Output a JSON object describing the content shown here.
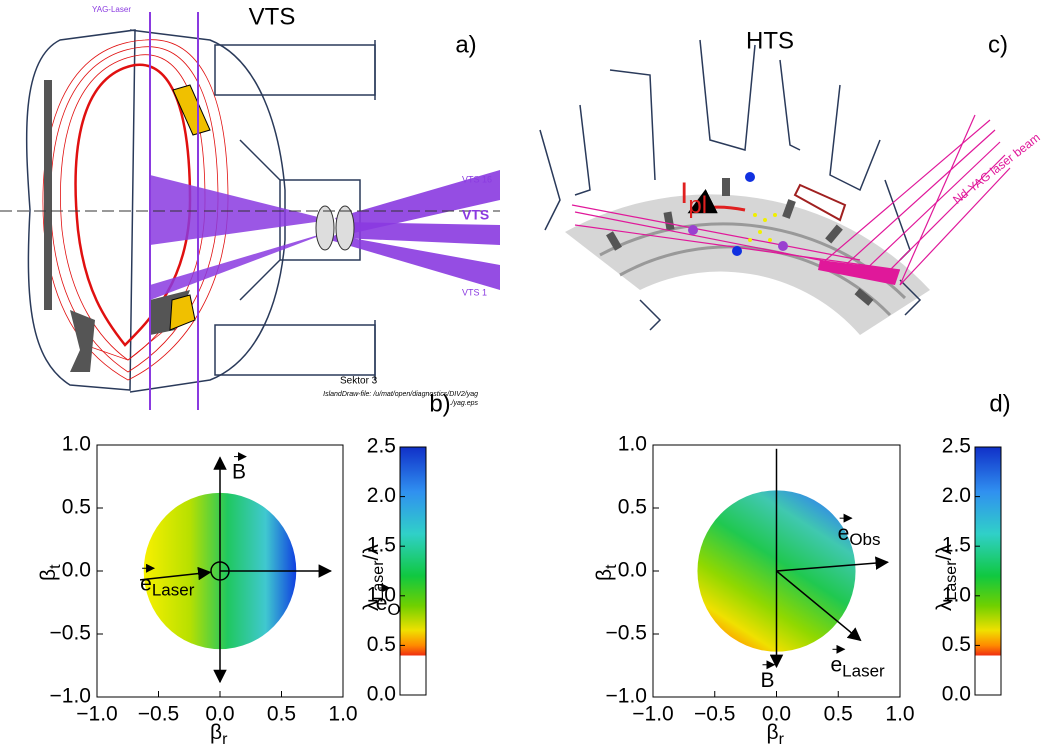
{
  "panels": {
    "a": {
      "title": "VTS",
      "label": "a)",
      "texts": {
        "yag": "YAG-Laser",
        "vts16": "VTS 16",
        "vts": "VTS",
        "vts1": "VTS 1",
        "sektor": "Sektor  3",
        "file1": "IslandDraw-file: /u/mat/open/diagnostics/DIV2/yag",
        "file2": "../yag.eps"
      }
    },
    "c": {
      "title": "HTS",
      "label": "c)",
      "current": {
        "symbol": "I",
        "sub": "pl"
      },
      "beam": "Nd-YAG laser beam"
    }
  },
  "chart_data": [
    {
      "type": "vector",
      "panel_label": "b)",
      "xlabel": {
        "symbol": "β",
        "sub": "r"
      },
      "ylabel": {
        "symbol": "β",
        "sub": "t"
      },
      "xlim": [
        -1,
        1
      ],
      "ylim": [
        -1,
        1
      ],
      "xticks": [
        {
          "value": -1,
          "label": "−1.0"
        },
        {
          "value": -0.5,
          "label": "−0.5"
        },
        {
          "value": 0,
          "label": "0.0"
        },
        {
          "value": 0.5,
          "label": "0.5"
        },
        {
          "value": 1,
          "label": "1.0"
        }
      ],
      "yticks": [
        {
          "value": -1,
          "label": "−1.0"
        },
        {
          "value": -0.5,
          "label": "−0.5"
        },
        {
          "value": 0,
          "label": "0.0"
        },
        {
          "value": 0.5,
          "label": "0.5"
        },
        {
          "value": 1,
          "label": "1.0"
        }
      ],
      "disk_radius": 0.62,
      "vectors": [
        {
          "label": {
            "symbol": "B"
          },
          "start": [
            0,
            0
          ],
          "end": [
            0,
            0.9
          ]
        },
        {
          "start": [
            0,
            0
          ],
          "end": [
            0,
            -0.88
          ]
        },
        {
          "label": {
            "symbol": "e",
            "sub": "Obs"
          },
          "start": [
            0,
            0
          ],
          "end": [
            0.9,
            0
          ]
        },
        {
          "label": {
            "symbol": "e",
            "sub": "Laser"
          },
          "start": [
            -0.65,
            -0.07
          ],
          "end": [
            -0.08,
            -0.01
          ]
        }
      ],
      "colorbar": {
        "label": {
          "symbol": "λ",
          "sub": "Laser",
          "tail": "/λ"
        },
        "lim": [
          0,
          2.5
        ],
        "ticks": [
          {
            "value": 0,
            "label": "0.0"
          },
          {
            "value": 0.5,
            "label": "0.5"
          },
          {
            "value": 1,
            "label": "1.0"
          },
          {
            "value": 1.5,
            "label": "1.5"
          },
          {
            "value": 2,
            "label": "2.0"
          },
          {
            "value": 2.5,
            "label": "2.5"
          }
        ]
      }
    },
    {
      "type": "vector",
      "panel_label": "d)",
      "xlabel": {
        "symbol": "β",
        "sub": "r"
      },
      "ylabel": {
        "symbol": "β",
        "sub": "t"
      },
      "xlim": [
        -1,
        1
      ],
      "ylim": [
        -1,
        1
      ],
      "xticks": [
        {
          "value": -1,
          "label": "−1.0"
        },
        {
          "value": -0.5,
          "label": "−0.5"
        },
        {
          "value": 0,
          "label": "0.0"
        },
        {
          "value": 0.5,
          "label": "0.5"
        },
        {
          "value": 1,
          "label": "1.0"
        }
      ],
      "yticks": [
        {
          "value": -1,
          "label": "−1.0"
        },
        {
          "value": -0.5,
          "label": "−0.5"
        },
        {
          "value": 0,
          "label": "0.0"
        },
        {
          "value": 0.5,
          "label": "0.5"
        },
        {
          "value": 1,
          "label": "1.0"
        }
      ],
      "disk_radius": 0.64,
      "vectors": [
        {
          "start": [
            0,
            0
          ],
          "end": [
            0,
            0.97
          ],
          "arrowhead": false
        },
        {
          "label": {
            "symbol": "B"
          },
          "start": [
            0,
            0
          ],
          "end": [
            0,
            -0.76
          ]
        },
        {
          "label": {
            "symbol": "e",
            "sub": "Obs"
          },
          "start": [
            0,
            0
          ],
          "end": [
            0.9,
            0.07
          ]
        },
        {
          "label": {
            "symbol": "e",
            "sub": "Laser"
          },
          "start": [
            0,
            0
          ],
          "end": [
            0.68,
            -0.55
          ]
        }
      ],
      "colorbar": {
        "label": {
          "symbol": "λ",
          "sub": "Laser",
          "tail": "/λ"
        },
        "lim": [
          0,
          2.5
        ],
        "ticks": [
          {
            "value": 0,
            "label": "0.0"
          },
          {
            "value": 0.5,
            "label": "0.5"
          },
          {
            "value": 1,
            "label": "1.0"
          },
          {
            "value": 1.5,
            "label": "1.5"
          },
          {
            "value": 2,
            "label": "2.0"
          },
          {
            "value": 2.5,
            "label": "2.5"
          }
        ]
      }
    }
  ]
}
